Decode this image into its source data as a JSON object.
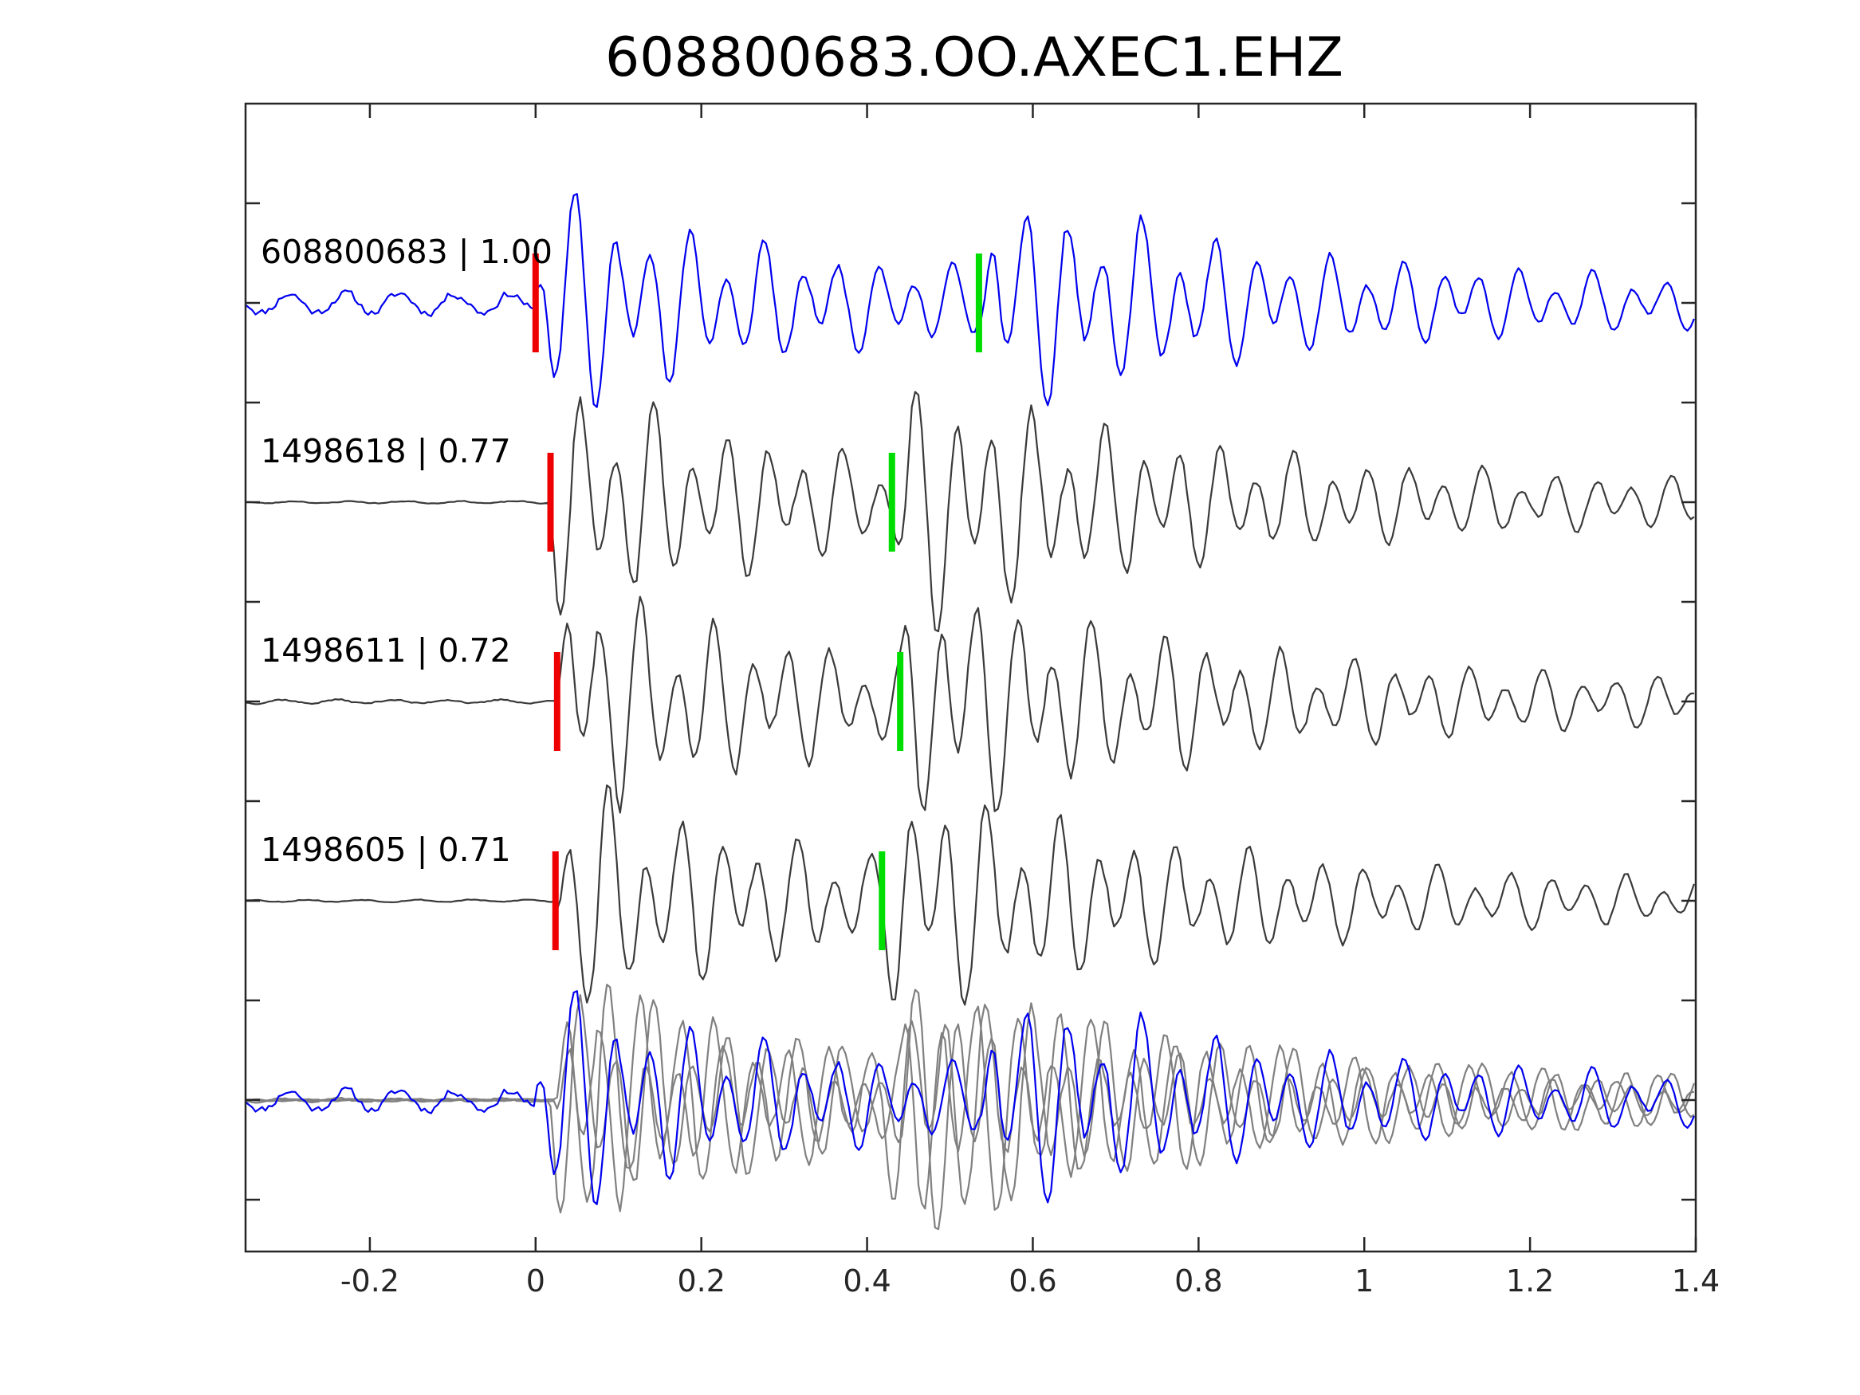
{
  "chart_data": {
    "type": "line",
    "title": "608800683.OO.AXEC1.EHZ",
    "xlabel": "",
    "ylabel": "",
    "xlim": [
      -0.35,
      1.4
    ],
    "x_ticks": [
      "-0.2",
      "0",
      "0.2",
      "0.4",
      "0.6",
      "0.8",
      "1",
      "1.2",
      "1.4"
    ],
    "x_tick_values": [
      -0.2,
      0,
      0.2,
      0.4,
      0.6,
      0.8,
      1,
      1.2,
      1.4
    ],
    "y_tick_count": 12,
    "grid": false,
    "legend": "none",
    "colors": {
      "reference": "#0000ee",
      "match": "#3a3a3a",
      "overlay_match": "#808080",
      "p_pick": "#ee0000",
      "s_pick": "#00dd00",
      "axis": "#262626"
    },
    "traces": [
      {
        "label": "608800683 | 1.00",
        "id": "608800683",
        "cc": 1.0,
        "role": "reference",
        "p_pick": 0.0,
        "s_pick": 0.535,
        "pre_noise": 0.18,
        "peak": 1.0,
        "seed": 11
      },
      {
        "label": "1498618 | 0.77",
        "id": "1498618",
        "cc": 0.77,
        "role": "match",
        "p_pick": 0.018,
        "s_pick": 0.43,
        "pre_noise": 0.02,
        "peak": 1.05,
        "seed": 23
      },
      {
        "label": "1498611 | 0.72",
        "id": "1498611",
        "cc": 0.72,
        "role": "match",
        "p_pick": 0.026,
        "s_pick": 0.44,
        "pre_noise": 0.035,
        "peak": 1.05,
        "seed": 37
      },
      {
        "label": "1498605 | 0.71",
        "id": "1498605",
        "cc": 0.71,
        "role": "match",
        "p_pick": 0.024,
        "s_pick": 0.418,
        "pre_noise": 0.02,
        "peak": 1.0,
        "seed": 53
      }
    ],
    "overlay": {
      "traces": [
        "608800683",
        "1498618",
        "1498611",
        "1498605"
      ]
    }
  }
}
